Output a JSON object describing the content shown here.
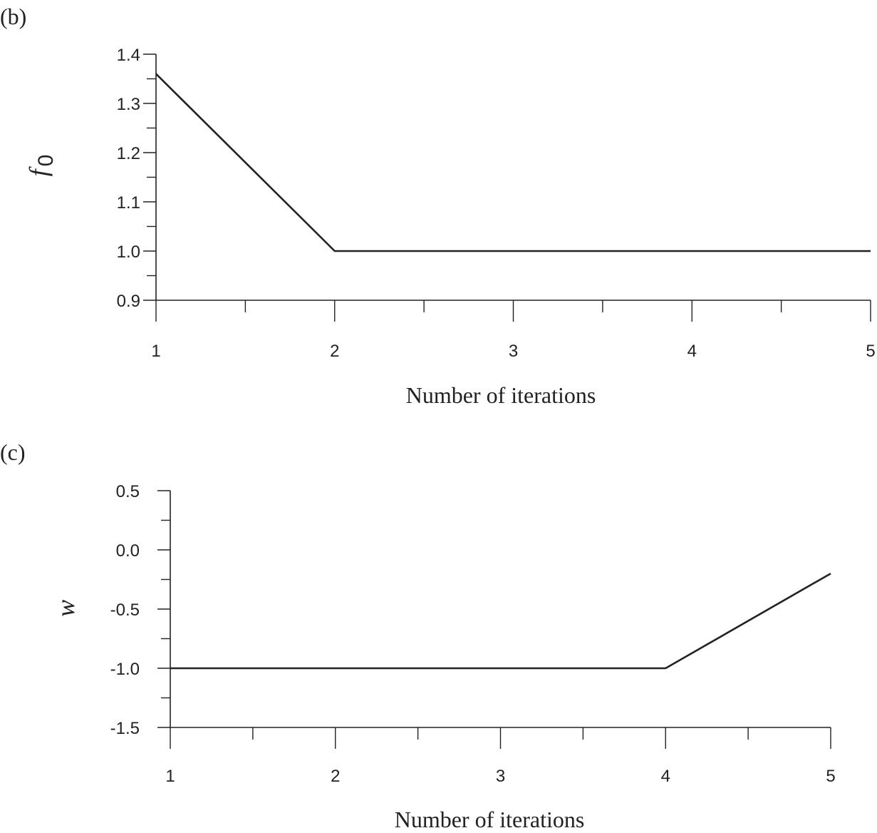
{
  "chart_data": [
    {
      "panel_label": "(b)",
      "type": "line",
      "x": [
        1,
        2,
        3,
        4,
        5
      ],
      "series": [
        {
          "values": [
            1.36,
            1.0,
            1.0,
            1.0,
            1.0
          ]
        }
      ],
      "xlabel": "Number of iterations",
      "ylabel": "f",
      "ylabel_subscript": "0",
      "xlim": [
        1,
        5
      ],
      "ylim": [
        0.9,
        1.4
      ],
      "xticks": [
        "1",
        "2",
        "3",
        "4",
        "5"
      ],
      "yticks": [
        "0.9",
        "1.0",
        "1.1",
        "1.2",
        "1.3",
        "1.4"
      ],
      "grid": false
    },
    {
      "panel_label": "(c)",
      "type": "line",
      "x": [
        1,
        2,
        3,
        4,
        5
      ],
      "series": [
        {
          "values": [
            -1.0,
            -1.0,
            -1.0,
            -1.0,
            -0.2
          ]
        }
      ],
      "xlabel": "Number of iterations",
      "ylabel": "w",
      "xlim": [
        1,
        5
      ],
      "ylim": [
        -1.5,
        0.5
      ],
      "xticks": [
        "1",
        "2",
        "3",
        "4",
        "5"
      ],
      "yticks": [
        "-1.5",
        "-1.0",
        "-0.5",
        "0.0",
        "0.5"
      ],
      "grid": false
    }
  ]
}
